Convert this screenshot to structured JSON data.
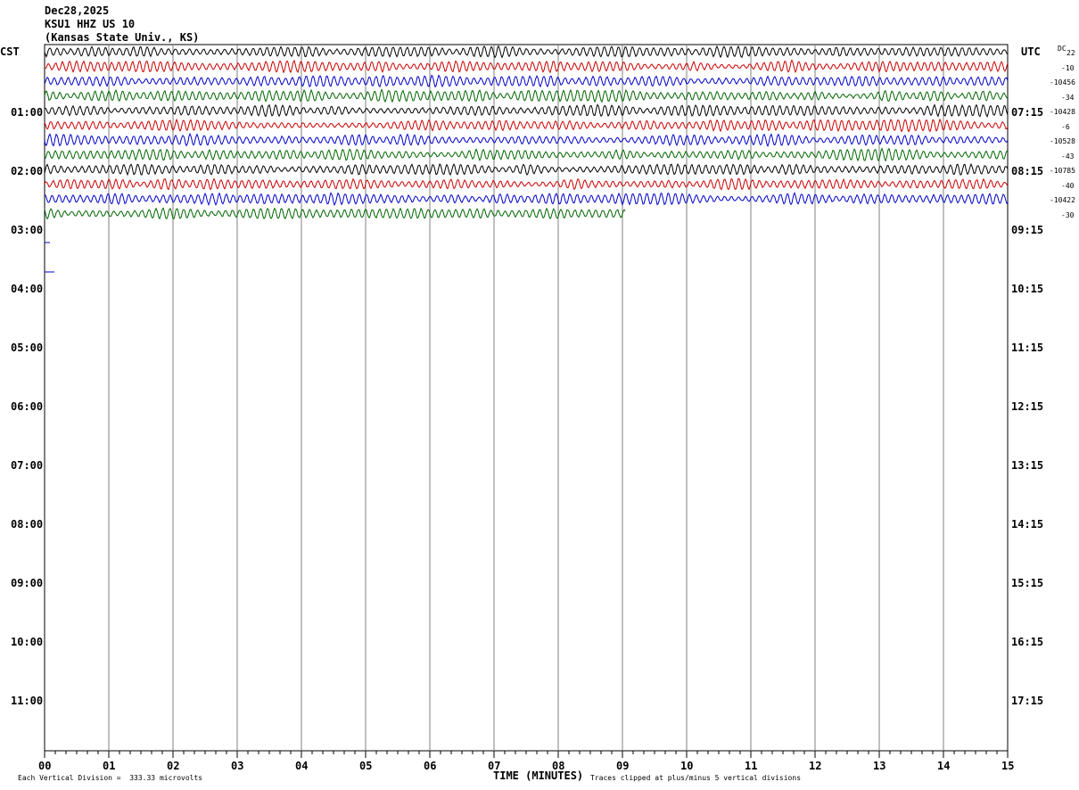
{
  "header": {
    "date": "Dec28,2025",
    "station": "KSU1 HHZ US 10",
    "location": "(Kansas State Univ., KS)"
  },
  "left_zone_label": "CST",
  "right_zone_label": "UTC",
  "dc_label": "DC",
  "left_hours": [
    "01:00",
    "02:00",
    "03:00",
    "04:00",
    "05:00",
    "06:00",
    "07:00",
    "08:00",
    "09:00",
    "10:00",
    "11:00"
  ],
  "right_hours": [
    "07:15",
    "08:15",
    "09:15",
    "10:15",
    "11:15",
    "12:15",
    "13:15",
    "14:15",
    "15:15",
    "16:15",
    "17:15"
  ],
  "dc_offsets": [
    "22",
    "-10",
    "-10456",
    "-34",
    "-10428",
    "-6",
    "-10528",
    "-43",
    "-10785",
    "-40",
    "-10422",
    "-30"
  ],
  "x_ticks": [
    "00",
    "01",
    "02",
    "03",
    "04",
    "05",
    "06",
    "07",
    "08",
    "09",
    "10",
    "11",
    "12",
    "13",
    "14",
    "15"
  ],
  "x_axis_title": "TIME (MINUTES)",
  "footer_left": "Each Vertical Division =  333.33 microvolts",
  "footer_right": "Traces clipped at plus/minus 5 vertical divisions",
  "trace_colors": [
    "#000000",
    "#cc0000",
    "#0000cc",
    "#006600"
  ],
  "trace_rows": 12,
  "last_trace_end_minute": 9.05
}
